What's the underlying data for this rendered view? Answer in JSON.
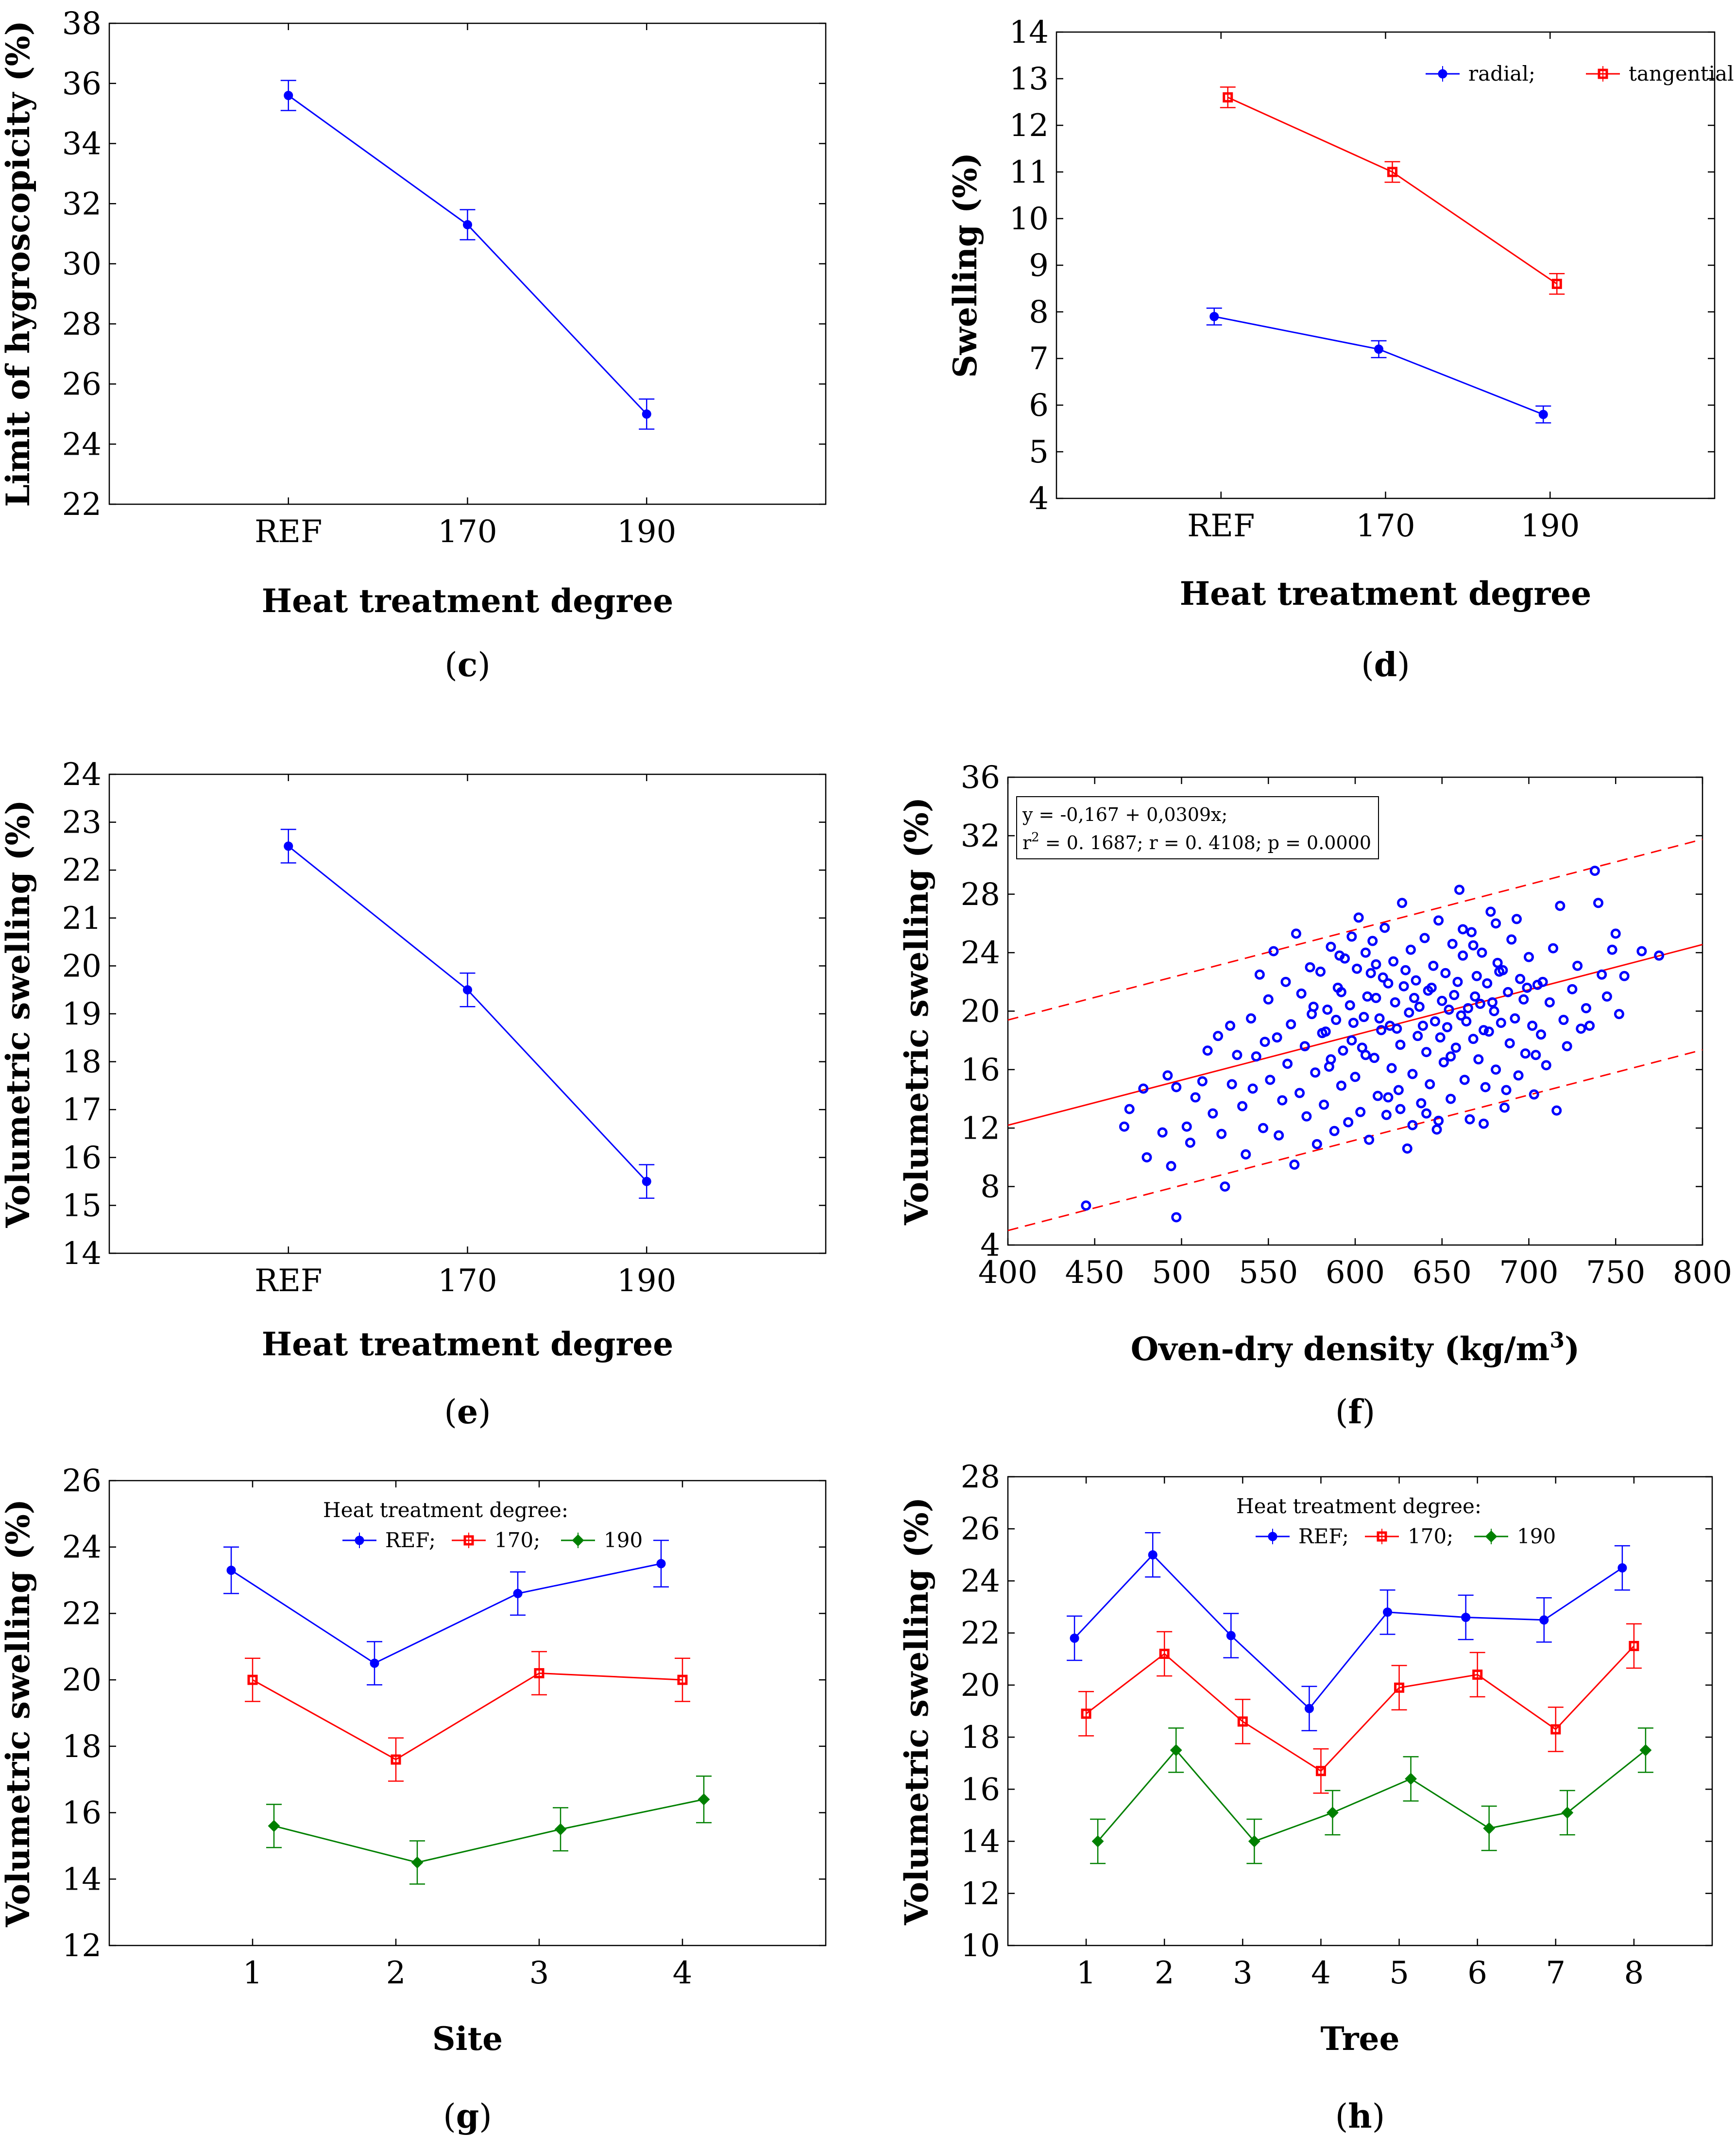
{
  "colors": {
    "blue": "#0000ff",
    "red": "#ff0000",
    "green": "#008000",
    "fitline": "#ff0000"
  },
  "chart_data": [
    {
      "id": "c",
      "type": "line",
      "panel_label": "c",
      "xlabel": "Heat treatment degree",
      "ylabel": "Limit of hygroscopicity (%)",
      "categories": [
        "REF",
        "170",
        "190"
      ],
      "ylim": [
        22,
        38
      ],
      "yticks": [
        "22",
        "24",
        "26",
        "28",
        "30",
        "32",
        "34",
        "36",
        "38"
      ],
      "series": [
        {
          "color": "blue",
          "values": [
            35.6,
            31.3,
            25.0
          ],
          "err": [
            0.5,
            0.5,
            0.5
          ]
        }
      ]
    },
    {
      "id": "d",
      "type": "line",
      "panel_label": "d",
      "xlabel": "Heat treatment degree",
      "ylabel": "Swelling (%)",
      "categories": [
        "REF",
        "170",
        "190"
      ],
      "ylim": [
        4,
        14
      ],
      "yticks": [
        "4",
        "5",
        "6",
        "7",
        "8",
        "9",
        "10",
        "11",
        "12",
        "13",
        "14"
      ],
      "legend": {
        "position": "top-right",
        "entries": [
          "radial;",
          "tangential"
        ]
      },
      "series": [
        {
          "name": "radial;",
          "color": "blue",
          "values": [
            7.9,
            7.2,
            5.8
          ],
          "err": [
            0.18,
            0.18,
            0.18
          ]
        },
        {
          "name": "tangential",
          "color": "red",
          "values": [
            12.6,
            11.0,
            8.6
          ],
          "err": [
            0.22,
            0.22,
            0.22
          ]
        }
      ]
    },
    {
      "id": "e",
      "type": "line",
      "panel_label": "e",
      "xlabel": "Heat treatment degree",
      "ylabel": "Volumetric swelling (%)",
      "categories": [
        "REF",
        "170",
        "190"
      ],
      "ylim": [
        14,
        24
      ],
      "yticks": [
        "14",
        "15",
        "16",
        "17",
        "18",
        "19",
        "20",
        "21",
        "22",
        "23",
        "24"
      ],
      "series": [
        {
          "color": "blue",
          "values": [
            22.5,
            19.5,
            15.5
          ],
          "err": [
            0.35,
            0.35,
            0.35
          ]
        }
      ]
    },
    {
      "id": "f",
      "type": "scatter",
      "panel_label": "f",
      "xlabel": "Oven-dry density (kg/m",
      "xlabel_sup": "3",
      "xlabel_end": ")",
      "ylabel": "Volumetric swelling (%)",
      "xlim": [
        400,
        800
      ],
      "ylim": [
        4,
        36
      ],
      "xticks": [
        "400",
        "450",
        "500",
        "550",
        "600",
        "650",
        "700",
        "750",
        "800"
      ],
      "yticks": [
        "4",
        "8",
        "12",
        "16",
        "20",
        "24",
        "28",
        "32",
        "36"
      ],
      "equation_line1": "y = -0,167 + 0,0309x;",
      "equation_line2_pre": "r",
      "equation_line2_sup": "2",
      "equation_line2_post": " = 0. 1687; r = 0. 4108; p = 0.0000",
      "regression": {
        "intercept": -0.167,
        "slope": 0.0309,
        "band_offset": 7.2
      },
      "points": [
        [
          445,
          6.7
        ],
        [
          497,
          5.9
        ],
        [
          467,
          12.1
        ],
        [
          470,
          13.3
        ],
        [
          478,
          14.7
        ],
        [
          480,
          10.0
        ],
        [
          489,
          11.7
        ],
        [
          492,
          15.6
        ],
        [
          494,
          9.4
        ],
        [
          497,
          14.8
        ],
        [
          503,
          12.1
        ],
        [
          505,
          11.0
        ],
        [
          508,
          14.1
        ],
        [
          512,
          15.2
        ],
        [
          515,
          17.3
        ],
        [
          518,
          13.0
        ],
        [
          521,
          18.3
        ],
        [
          523,
          11.6
        ],
        [
          525,
          8.0
        ],
        [
          528,
          19.0
        ],
        [
          529,
          15.0
        ],
        [
          532,
          17.0
        ],
        [
          535,
          13.5
        ],
        [
          537,
          10.2
        ],
        [
          540,
          19.5
        ],
        [
          541,
          14.7
        ],
        [
          543,
          16.9
        ],
        [
          545,
          22.5
        ],
        [
          547,
          12.0
        ],
        [
          548,
          17.9
        ],
        [
          550,
          20.8
        ],
        [
          551,
          15.3
        ],
        [
          553,
          24.1
        ],
        [
          555,
          18.2
        ],
        [
          556,
          11.5
        ],
        [
          558,
          13.9
        ],
        [
          560,
          22.0
        ],
        [
          561,
          16.4
        ],
        [
          563,
          19.1
        ],
        [
          565,
          9.5
        ],
        [
          566,
          25.3
        ],
        [
          568,
          14.4
        ],
        [
          569,
          21.2
        ],
        [
          571,
          17.6
        ],
        [
          572,
          12.8
        ],
        [
          574,
          23.0
        ],
        [
          575,
          19.8
        ],
        [
          577,
          15.8
        ],
        [
          578,
          10.9
        ],
        [
          580,
          22.7
        ],
        [
          581,
          18.5
        ],
        [
          582,
          13.6
        ],
        [
          584,
          20.1
        ],
        [
          585,
          16.2
        ],
        [
          586,
          24.4
        ],
        [
          588,
          11.8
        ],
        [
          589,
          19.4
        ],
        [
          590,
          21.6
        ],
        [
          592,
          14.9
        ],
        [
          593,
          17.3
        ],
        [
          594,
          23.6
        ],
        [
          596,
          12.4
        ],
        [
          597,
          20.4
        ],
        [
          598,
          18.0
        ],
        [
          600,
          15.5
        ],
        [
          601,
          22.9
        ],
        [
          602,
          26.4
        ],
        [
          603,
          13.1
        ],
        [
          605,
          19.6
        ],
        [
          606,
          17.0
        ],
        [
          607,
          21.0
        ],
        [
          608,
          11.2
        ],
        [
          610,
          24.8
        ],
        [
          611,
          16.8
        ],
        [
          612,
          20.9
        ],
        [
          613,
          14.2
        ],
        [
          615,
          18.7
        ],
        [
          616,
          22.3
        ],
        [
          617,
          25.7
        ],
        [
          618,
          12.9
        ],
        [
          620,
          19.0
        ],
        [
          621,
          16.1
        ],
        [
          622,
          23.4
        ],
        [
          623,
          20.6
        ],
        [
          625,
          14.6
        ],
        [
          626,
          17.7
        ],
        [
          627,
          27.4
        ],
        [
          628,
          21.7
        ],
        [
          630,
          10.6
        ],
        [
          631,
          19.9
        ],
        [
          632,
          24.2
        ],
        [
          633,
          15.7
        ],
        [
          635,
          22.1
        ],
        [
          636,
          18.3
        ],
        [
          637,
          20.3
        ],
        [
          638,
          13.7
        ],
        [
          640,
          25.0
        ],
        [
          641,
          17.2
        ],
        [
          642,
          21.4
        ],
        [
          643,
          15.0
        ],
        [
          645,
          23.1
        ],
        [
          646,
          19.3
        ],
        [
          647,
          11.9
        ],
        [
          648,
          26.2
        ],
        [
          650,
          20.7
        ],
        [
          651,
          16.5
        ],
        [
          652,
          22.6
        ],
        [
          653,
          18.9
        ],
        [
          655,
          14.0
        ],
        [
          656,
          24.6
        ],
        [
          657,
          21.1
        ],
        [
          658,
          17.5
        ],
        [
          660,
          28.3
        ],
        [
          661,
          19.7
        ],
        [
          662,
          23.8
        ],
        [
          663,
          15.3
        ],
        [
          665,
          20.2
        ],
        [
          666,
          12.6
        ],
        [
          667,
          25.4
        ],
        [
          668,
          18.1
        ],
        [
          670,
          22.4
        ],
        [
          671,
          16.7
        ],
        [
          672,
          20.5
        ],
        [
          673,
          24.0
        ],
        [
          675,
          14.8
        ],
        [
          676,
          21.9
        ],
        [
          677,
          18.6
        ],
        [
          678,
          26.8
        ],
        [
          680,
          20.0
        ],
        [
          681,
          16.0
        ],
        [
          682,
          23.3
        ],
        [
          684,
          19.2
        ],
        [
          685,
          22.8
        ],
        [
          686,
          13.4
        ],
        [
          688,
          21.3
        ],
        [
          689,
          17.8
        ],
        [
          690,
          24.9
        ],
        [
          692,
          19.5
        ],
        [
          694,
          15.6
        ],
        [
          695,
          22.2
        ],
        [
          697,
          20.8
        ],
        [
          698,
          17.1
        ],
        [
          700,
          23.7
        ],
        [
          702,
          19.0
        ],
        [
          703,
          14.3
        ],
        [
          705,
          21.8
        ],
        [
          707,
          18.4
        ],
        [
          708,
          22.0
        ],
        [
          710,
          16.3
        ],
        [
          712,
          20.6
        ],
        [
          714,
          24.3
        ],
        [
          716,
          13.2
        ],
        [
          718,
          27.2
        ],
        [
          720,
          19.4
        ],
        [
          722,
          17.6
        ],
        [
          725,
          21.5
        ],
        [
          728,
          23.1
        ],
        [
          730,
          18.8
        ],
        [
          733,
          20.2
        ],
        [
          735,
          19.0
        ],
        [
          738,
          29.6
        ],
        [
          740,
          27.4
        ],
        [
          742,
          22.5
        ],
        [
          745,
          21.0
        ],
        [
          748,
          24.2
        ],
        [
          750,
          25.3
        ],
        [
          752,
          19.8
        ],
        [
          755,
          22.4
        ],
        [
          765,
          24.1
        ],
        [
          775,
          23.8
        ],
        [
          586,
          16.7
        ],
        [
          592,
          21.3
        ],
        [
          599,
          19.2
        ],
        [
          604,
          17.5
        ],
        [
          609,
          22.6
        ],
        [
          614,
          19.5
        ],
        [
          619,
          21.9
        ],
        [
          624,
          18.8
        ],
        [
          629,
          22.8
        ],
        [
          634,
          20.9
        ],
        [
          639,
          19.0
        ],
        [
          644,
          21.6
        ],
        [
          649,
          18.2
        ],
        [
          654,
          20.1
        ],
        [
          659,
          22.0
        ],
        [
          664,
          19.3
        ],
        [
          669,
          21.0
        ],
        [
          674,
          18.7
        ],
        [
          679,
          20.6
        ],
        [
          683,
          22.7
        ],
        [
          576,
          20.3
        ],
        [
          583,
          18.6
        ],
        [
          591,
          23.8
        ],
        [
          598,
          25.1
        ],
        [
          606,
          24.0
        ],
        [
          612,
          23.2
        ],
        [
          619,
          14.1
        ],
        [
          626,
          13.3
        ],
        [
          633,
          12.2
        ],
        [
          641,
          13.0
        ],
        [
          648,
          12.5
        ],
        [
          655,
          16.9
        ],
        [
          662,
          25.6
        ],
        [
          668,
          24.5
        ],
        [
          674,
          12.3
        ],
        [
          681,
          26.0
        ],
        [
          687,
          14.6
        ],
        [
          693,
          26.3
        ],
        [
          699,
          21.6
        ],
        [
          704,
          17.0
        ]
      ]
    },
    {
      "id": "g",
      "type": "line",
      "panel_label": "g",
      "xlabel": "Site",
      "ylabel": "Volumetric swelling (%)",
      "categories": [
        "1",
        "2",
        "3",
        "4"
      ],
      "ylim": [
        12,
        26
      ],
      "yticks": [
        "12",
        "14",
        "16",
        "18",
        "20",
        "22",
        "24",
        "26"
      ],
      "legend": {
        "position": "top",
        "title": "Heat treatment degree:",
        "entries": [
          "REF;",
          "170;",
          "190"
        ]
      },
      "series": [
        {
          "name": "REF;",
          "color": "blue",
          "values": [
            23.3,
            20.5,
            22.6,
            23.5
          ],
          "err": [
            0.7,
            0.65,
            0.65,
            0.7
          ]
        },
        {
          "name": "170;",
          "color": "red",
          "values": [
            20.0,
            17.6,
            20.2,
            20.0
          ],
          "err": [
            0.65,
            0.65,
            0.65,
            0.65
          ]
        },
        {
          "name": "190",
          "color": "green",
          "values": [
            15.6,
            14.5,
            15.5,
            16.4
          ],
          "err": [
            0.65,
            0.65,
            0.65,
            0.7
          ]
        }
      ]
    },
    {
      "id": "h",
      "type": "line",
      "panel_label": "h",
      "xlabel": "Tree",
      "ylabel": "Volumetric swelling (%)",
      "categories": [
        "1",
        "2",
        "3",
        "4",
        "5",
        "6",
        "7",
        "8"
      ],
      "ylim": [
        10,
        28
      ],
      "yticks": [
        "10",
        "12",
        "14",
        "16",
        "18",
        "20",
        "22",
        "24",
        "26",
        "28"
      ],
      "legend": {
        "position": "top",
        "title": "Heat treatment degree:",
        "entries": [
          "REF;",
          "170;",
          "190"
        ]
      },
      "series": [
        {
          "name": "REF;",
          "color": "blue",
          "values": [
            21.8,
            25.0,
            21.9,
            19.1,
            22.8,
            22.6,
            22.5,
            24.5
          ],
          "err": [
            0.85,
            0.85,
            0.85,
            0.85,
            0.85,
            0.85,
            0.85,
            0.85
          ]
        },
        {
          "name": "170;",
          "color": "red",
          "values": [
            18.9,
            21.2,
            18.6,
            16.7,
            19.9,
            20.4,
            18.3,
            21.5
          ],
          "err": [
            0.85,
            0.85,
            0.85,
            0.85,
            0.85,
            0.85,
            0.85,
            0.85
          ]
        },
        {
          "name": "190",
          "color": "green",
          "values": [
            14.0,
            17.5,
            14.0,
            15.1,
            16.4,
            14.5,
            15.1,
            17.5
          ],
          "err": [
            0.85,
            0.85,
            0.85,
            0.85,
            0.85,
            0.85,
            0.85,
            0.85
          ]
        }
      ]
    }
  ]
}
